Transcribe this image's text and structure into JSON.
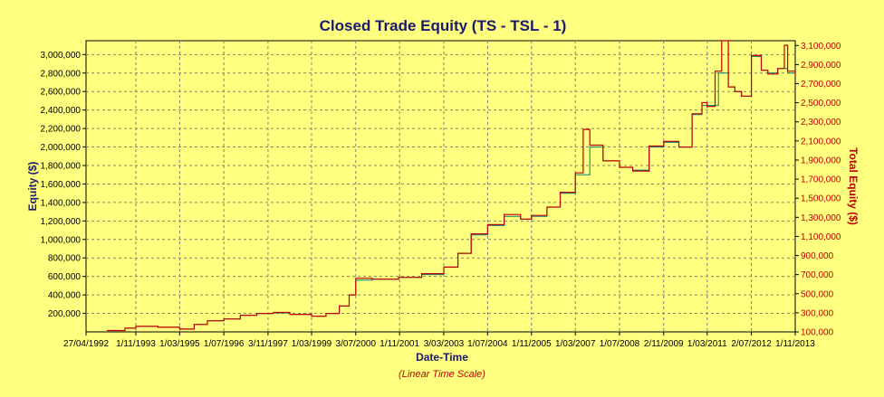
{
  "chart_data": {
    "type": "line",
    "title": "Closed Trade Equity (TS - TSL - 1)",
    "xlabel": "Date-Time",
    "ylabel": "Equity ($)",
    "y2label": "Total Equity ($)",
    "scale_note": "(Linear Time Scale)",
    "x_tick_labels": [
      "27/04/1992",
      "1/11/1993",
      "1/03/1995",
      "1/07/1996",
      "3/11/1997",
      "1/03/1999",
      "3/07/2000",
      "1/11/2001",
      "3/03/2003",
      "1/07/2004",
      "1/11/2005",
      "1/03/2007",
      "1/07/2008",
      "2/11/2009",
      "1/03/2011",
      "2/07/2012",
      "1/11/2013"
    ],
    "x_tick_years": [
      1992.32,
      1993.83,
      1995.16,
      1996.5,
      1997.84,
      1999.16,
      2000.5,
      2001.83,
      2003.17,
      2004.5,
      2005.83,
      2007.16,
      2008.5,
      2009.84,
      2011.16,
      2012.5,
      2013.83
    ],
    "xlim": [
      1992.32,
      2013.83
    ],
    "ylim": [
      0,
      3150000
    ],
    "y_ticks": [
      200000,
      400000,
      600000,
      800000,
      1000000,
      1200000,
      1400000,
      1600000,
      1800000,
      2000000,
      2200000,
      2400000,
      2600000,
      2800000,
      3000000
    ],
    "y_tick_labels": [
      "200,000",
      "400,000",
      "600,000",
      "800,000",
      "1,000,000",
      "1,200,000",
      "1,400,000",
      "1,600,000",
      "1,800,000",
      "2,000,000",
      "2,200,000",
      "2,400,000",
      "2,600,000",
      "2,800,000",
      "3,000,000"
    ],
    "y2lim": [
      100000,
      3150000
    ],
    "y2_tick_labels": [
      "100,000",
      "300,000",
      "500,000",
      "700,000",
      "900,000",
      "1,100,000",
      "1,300,000",
      "1,500,000",
      "1,700,000",
      "1,900,000",
      "2,100,000",
      "2,300,000",
      "2,500,000",
      "2,700,000",
      "2,900,000",
      "3,100,000"
    ],
    "y2_ticks": [
      100000,
      300000,
      500000,
      700000,
      900000,
      1100000,
      1300000,
      1500000,
      1700000,
      1900000,
      2100000,
      2300000,
      2500000,
      2700000,
      2900000,
      3100000
    ],
    "grid": true,
    "series": [
      {
        "color": "#008080",
        "x": [
          1992.95,
          1993.5,
          1993.83,
          1994.5,
          1995.16,
          1995.6,
          1996.0,
          1996.5,
          1997.0,
          1997.5,
          1998.0,
          1998.5,
          1999.16,
          1999.6,
          2000.0,
          2000.3,
          2000.5,
          2001.0,
          2001.8,
          2002.5,
          2003.17,
          2003.6,
          2004.0,
          2004.5,
          2005.0,
          2005.5,
          2005.83,
          2006.3,
          2006.7,
          2007.16,
          2007.6,
          2008.0,
          2008.5,
          2008.9,
          2009.4,
          2009.84,
          2010.3,
          2010.7,
          2011.0,
          2011.16,
          2011.5,
          2011.8,
          2012.0,
          2012.2,
          2012.5,
          2012.8,
          2013.0,
          2013.3,
          2013.6,
          2013.83
        ],
        "values": [
          15000,
          40000,
          60000,
          50000,
          30000,
          80000,
          120000,
          140000,
          180000,
          200000,
          205000,
          190000,
          170000,
          200000,
          280000,
          400000,
          560000,
          570000,
          590000,
          620000,
          700000,
          850000,
          1050000,
          1150000,
          1250000,
          1220000,
          1250000,
          1350000,
          1500000,
          1700000,
          2000000,
          1850000,
          1780000,
          1750000,
          2000000,
          2050000,
          2000000,
          2350000,
          2450000,
          2450000,
          2800000,
          2650000,
          2600000,
          2550000,
          2980000,
          2830000,
          2800000,
          2850000,
          2800000,
          2780000
        ]
      },
      {
        "color": "#c00000",
        "x": [
          1992.95,
          1993.5,
          1993.83,
          1994.5,
          1995.16,
          1995.6,
          1996.0,
          1996.5,
          1997.0,
          1997.5,
          1998.0,
          1998.5,
          1999.16,
          1999.6,
          2000.0,
          2000.3,
          2000.5,
          2001.0,
          2001.8,
          2002.5,
          2003.17,
          2003.6,
          2004.0,
          2004.5,
          2005.0,
          2005.5,
          2005.83,
          2006.3,
          2006.7,
          2007.16,
          2007.4,
          2007.6,
          2008.0,
          2008.5,
          2008.9,
          2009.4,
          2009.84,
          2010.3,
          2010.7,
          2011.0,
          2011.16,
          2011.4,
          2011.6,
          2011.8,
          2012.0,
          2012.2,
          2012.5,
          2012.8,
          2013.0,
          2013.3,
          2013.5,
          2013.6,
          2013.83
        ],
        "values": [
          15000,
          40000,
          60000,
          50000,
          30000,
          80000,
          120000,
          140000,
          180000,
          200000,
          210000,
          190000,
          170000,
          200000,
          280000,
          400000,
          580000,
          570000,
          590000,
          630000,
          700000,
          850000,
          1060000,
          1160000,
          1270000,
          1220000,
          1260000,
          1350000,
          1510000,
          1720000,
          2190000,
          2020000,
          1850000,
          1780000,
          1740000,
          2010000,
          2060000,
          2000000,
          2360000,
          2480000,
          2440000,
          2820000,
          3150000,
          2650000,
          2600000,
          2550000,
          2990000,
          2830000,
          2790000,
          2850000,
          3100000,
          2820000,
          2770000
        ]
      }
    ]
  }
}
